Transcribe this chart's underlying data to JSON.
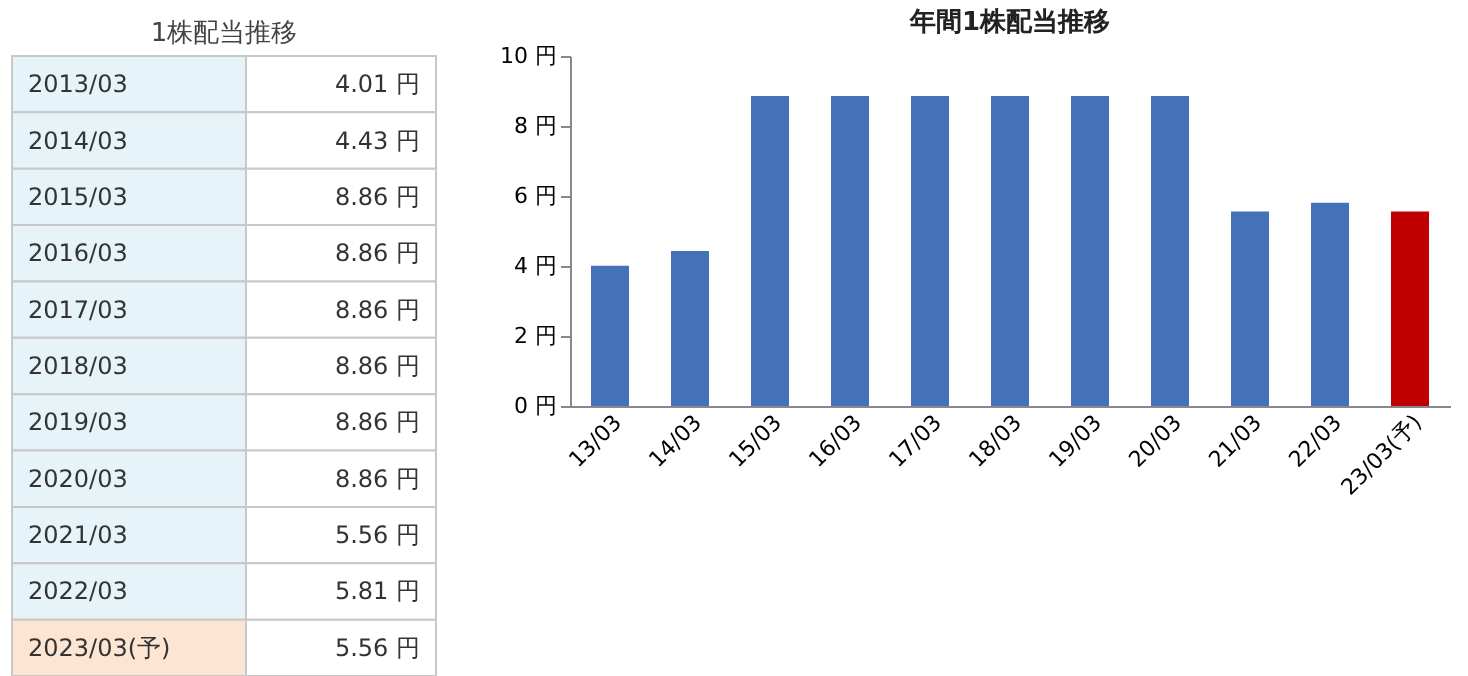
{
  "chart_data": [
    {
      "type": "other",
      "title": "1株配当推移",
      "categories": [
        "2013/03",
        "2014/03",
        "2015/03",
        "2016/03",
        "2017/03",
        "2018/03",
        "2019/03",
        "2020/03",
        "2021/03",
        "2022/03",
        "2023/03(予)"
      ],
      "value_labels": [
        "4.01 円",
        "4.43 円",
        "8.86 円",
        "8.86 円",
        "8.86 円",
        "8.86 円",
        "8.86 円",
        "8.86 円",
        "5.56 円",
        "5.81 円",
        "5.56 円"
      ],
      "colors": [
        "#e6f3f8",
        "#e6f3f8",
        "#e6f3f8",
        "#e6f3f8",
        "#e6f3f8",
        "#e6f3f8",
        "#e6f3f8",
        "#e6f3f8",
        "#e6f3f8",
        "#e6f3f8",
        "#fde5d3"
      ]
    },
    {
      "type": "bar",
      "title": "年間1株配当推移",
      "categories": [
        "13/03",
        "14/03",
        "15/03",
        "16/03",
        "17/03",
        "18/03",
        "19/03",
        "20/03",
        "21/03",
        "22/03",
        "23/03(予)"
      ],
      "values": [
        4.01,
        4.43,
        8.86,
        8.86,
        8.86,
        8.86,
        8.86,
        8.86,
        5.56,
        5.81,
        5.56
      ],
      "colors": [
        "#4472b8",
        "#4472b8",
        "#4472b8",
        "#4472b8",
        "#4472b8",
        "#4472b8",
        "#4472b8",
        "#4472b8",
        "#4472b8",
        "#4472b8",
        "#c00000"
      ],
      "ylim": [
        0,
        10
      ],
      "yticks": [
        {
          "value": 0,
          "label": "0 円"
        },
        {
          "value": 2,
          "label": "2 円"
        },
        {
          "value": 4,
          "label": "4 円"
        },
        {
          "value": 6,
          "label": "6 円"
        },
        {
          "value": 8,
          "label": "8 円"
        },
        {
          "value": 10,
          "label": "10 円"
        }
      ],
      "grid": false
    }
  ]
}
